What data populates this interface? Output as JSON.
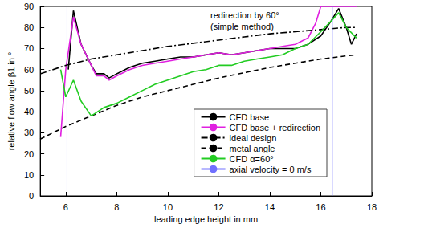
{
  "chart_data": {
    "type": "line",
    "x_label": "leading edge height in mm",
    "y_label": "relative flow angle β1 in °",
    "annotation": [
      "redirection by 60°",
      "(simple method)"
    ],
    "xlim": [
      5,
      18
    ],
    "xticks": [
      6,
      8,
      10,
      12,
      14,
      16,
      18
    ],
    "ylim": [
      0,
      90
    ],
    "yticks": [
      0,
      10,
      20,
      30,
      40,
      50,
      60,
      70,
      80,
      90
    ],
    "grid": false,
    "legend": "lower right",
    "series": [
      {
        "name": "CFD base",
        "color": "#000000",
        "line_style": "solid",
        "x": [
          6.1,
          6.3,
          6.6,
          7.0,
          7.2,
          7.5,
          7.7,
          8.0,
          8.5,
          9.0,
          9.5,
          10.0,
          10.5,
          11.0,
          11.5,
          12.0,
          12.5,
          13.0,
          13.5,
          14.0,
          14.5,
          15.0,
          15.5,
          16.0,
          16.4,
          16.7,
          17.0,
          17.2,
          17.4
        ],
        "values": [
          60,
          88,
          72,
          62,
          58,
          58,
          56,
          58,
          61,
          63,
          64,
          65,
          66,
          66,
          67,
          68,
          67,
          68,
          69,
          70,
          70,
          70,
          72,
          76,
          83,
          89,
          80,
          72,
          77
        ]
      },
      {
        "name": "CFD base + redirection",
        "color": "#e020e0",
        "line_style": "solid",
        "x": [
          5.8,
          6.0,
          6.3,
          6.6,
          7.0,
          7.2,
          7.5,
          7.7,
          8.0,
          8.5,
          9.0,
          9.5,
          10.0,
          10.5,
          11.0,
          11.5,
          12.0,
          12.5,
          13.0,
          13.5,
          14.0,
          14.5,
          15.0,
          15.5,
          15.8,
          16.0,
          16.5,
          17.0,
          17.4
        ],
        "values": [
          28,
          60,
          85,
          72,
          62,
          57,
          57,
          55,
          57,
          60,
          62,
          63,
          64,
          65,
          66,
          67,
          68,
          67,
          68,
          69,
          70,
          71,
          72,
          75,
          82,
          90,
          90,
          90,
          90
        ]
      },
      {
        "name": "ideal design",
        "color": "#000000",
        "line_style": "dashdot",
        "x": [
          5,
          6,
          7,
          8,
          9,
          10,
          11,
          12,
          13,
          14,
          15,
          16,
          17,
          17.4
        ],
        "values": [
          58,
          62,
          65,
          67,
          69,
          71,
          72.5,
          74,
          75.5,
          77,
          78,
          79,
          80,
          80
        ]
      },
      {
        "name": "metal angle",
        "color": "#000000",
        "line_style": "dashed",
        "x": [
          5,
          6,
          7,
          8,
          9,
          10,
          11,
          12,
          13,
          14,
          15,
          16,
          17,
          17.4
        ],
        "values": [
          27,
          33,
          38,
          43,
          47,
          50,
          53,
          56,
          58.5,
          61,
          63,
          65,
          66.5,
          67
        ]
      },
      {
        "name": "CFD α=60°",
        "color": "#22cc22",
        "line_style": "solid",
        "x": [
          5.8,
          6.0,
          6.3,
          6.6,
          7.0,
          7.5,
          8.0,
          8.5,
          9.0,
          9.5,
          10.0,
          10.5,
          11.0,
          11.5,
          12.0,
          12.5,
          13.0,
          13.5,
          14.0,
          14.5,
          15.0,
          15.5,
          16.0,
          16.4,
          16.7,
          17.0,
          17.4
        ],
        "values": [
          60,
          47,
          55,
          45,
          38,
          42,
          44,
          47,
          50,
          53,
          55,
          57,
          59,
          60,
          62,
          62,
          64,
          65,
          66,
          67,
          70,
          72,
          78,
          83,
          87,
          80,
          75
        ]
      },
      {
        "name": "axial velocity = 0 m/s",
        "color": "#7070ff",
        "line_style": "solid",
        "x": [
          6.05,
          6.05,
          null,
          16.45,
          16.45
        ],
        "values": [
          0,
          90,
          null,
          0,
          90
        ]
      }
    ]
  }
}
